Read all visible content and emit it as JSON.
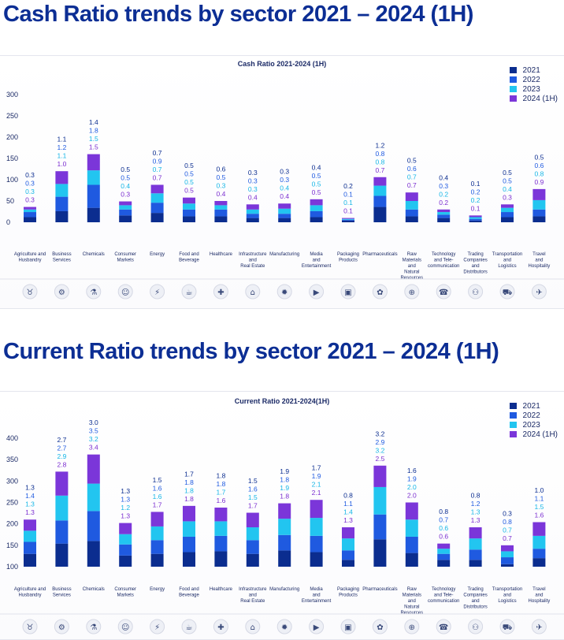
{
  "headings": {
    "cash": "Cash Ratio trends by sector 2021 – 2024 (1H)",
    "current": "Current Ratio trends by sector 2021 – 2024 (1H)"
  },
  "colors": {
    "2021": "#0b2d8f",
    "2022": "#1f5ae0",
    "2023": "#22c5f0",
    "2024 (1H)": "#7b36d9",
    "label2023": "#16b6e6",
    "label2024": "#7b2fd0",
    "axis": "#1b2a66"
  },
  "legend": [
    "2021",
    "2022",
    "2023",
    "2024 (1H)"
  ],
  "sectors": [
    {
      "label": [
        "Agriculture and",
        "Husbandry"
      ],
      "icon": "cow-icon",
      "glyph": "♉"
    },
    {
      "label": [
        "Business",
        "Services"
      ],
      "icon": "gears-icon",
      "glyph": "⚙"
    },
    {
      "label": [
        "Chemicals"
      ],
      "icon": "flask-icon",
      "glyph": "⚗"
    },
    {
      "label": [
        "Consumer",
        "Markets"
      ],
      "icon": "person-icon",
      "glyph": "☺"
    },
    {
      "label": [
        "Energy"
      ],
      "icon": "energy-icon",
      "glyph": "⚡"
    },
    {
      "label": [
        "Food and",
        "Beverage"
      ],
      "icon": "cup-icon",
      "glyph": "☕"
    },
    {
      "label": [
        "Healthcare"
      ],
      "icon": "health-icon",
      "glyph": "✚"
    },
    {
      "label": [
        "Infrastructure",
        "and",
        "Real Estate"
      ],
      "icon": "building-icon",
      "glyph": "⌂"
    },
    {
      "label": [
        "Manufacturing"
      ],
      "icon": "cog-icon",
      "glyph": "✹"
    },
    {
      "label": [
        "Media",
        "and",
        "Entertainment"
      ],
      "icon": "media-icon",
      "glyph": "▶"
    },
    {
      "label": [
        "Packaging",
        "Products"
      ],
      "icon": "box-icon",
      "glyph": "▣"
    },
    {
      "label": [
        "Pharmaceuticals"
      ],
      "icon": "pills-icon",
      "glyph": "✿"
    },
    {
      "label": [
        "Raw",
        "Materials",
        "and",
        "Natural",
        "Resources"
      ],
      "icon": "globe-icon",
      "glyph": "⊕"
    },
    {
      "label": [
        "Technology",
        "and Tele-",
        "communication"
      ],
      "icon": "chip-icon",
      "glyph": "☎"
    },
    {
      "label": [
        "Trading",
        "Companies",
        "and",
        "Distributors"
      ],
      "icon": "people-icon",
      "glyph": "⚇"
    },
    {
      "label": [
        "Transportation",
        "and",
        "Logistics"
      ],
      "icon": "truck-icon",
      "glyph": "⛟"
    },
    {
      "label": [
        "Travel",
        "and",
        "Hospitality"
      ],
      "icon": "plane-icon",
      "glyph": "✈"
    }
  ],
  "chart_data": [
    {
      "type": "bar",
      "stacked": true,
      "title": "Cash Ratio 2021-2024 (1H)",
      "ylim": [
        0,
        300
      ],
      "yticks": [
        0,
        50,
        100,
        150,
        200,
        250,
        300
      ],
      "series_names": [
        "2021",
        "2022",
        "2023",
        "2024 (1H)"
      ],
      "labels": [
        [
          "0.3",
          "0.3",
          "0.3",
          "0.3"
        ],
        [
          "1.1",
          "1.2",
          "1.1",
          "1.0"
        ],
        [
          "1.4",
          "1.8",
          "1.5",
          "1.5"
        ],
        [
          "0.5",
          "0.5",
          "0.4",
          "0.3"
        ],
        [
          "0.7",
          "0.9",
          "0.7",
          "0.7"
        ],
        [
          "0.5",
          "0.5",
          "0.5",
          "0.5"
        ],
        [
          "0.6",
          "0.5",
          "0.3",
          "0.4"
        ],
        [
          "0.3",
          "0.3",
          "0.3",
          "0.4"
        ],
        [
          "0.3",
          "0.3",
          "0.4",
          "0.4"
        ],
        [
          "0.4",
          "0.5",
          "0.5",
          "0.5"
        ],
        [
          "0.2",
          "0.1",
          "0.1",
          "0.1"
        ],
        [
          "1.2",
          "0.8",
          "0.8",
          "0.7"
        ],
        [
          "0.5",
          "0.6",
          "0.7",
          "0.7"
        ],
        [
          "0.4",
          "0.3",
          "0.2",
          "0.2"
        ],
        [
          "0.1",
          "0.2",
          "0.2",
          "0.1"
        ],
        [
          "0.5",
          "0.5",
          "0.4",
          "0.3"
        ],
        [
          "0.5",
          "0.6",
          "0.8",
          "0.9"
        ]
      ],
      "values": [
        [
          12,
          12,
          6,
          6
        ],
        [
          26,
          34,
          30,
          30
        ],
        [
          34,
          54,
          34,
          38
        ],
        [
          16,
          14,
          10,
          9
        ],
        [
          22,
          24,
          22,
          20
        ],
        [
          14,
          16,
          14,
          14
        ],
        [
          14,
          16,
          10,
          10
        ],
        [
          10,
          10,
          10,
          12
        ],
        [
          10,
          10,
          12,
          12
        ],
        [
          12,
          14,
          14,
          14
        ],
        [
          4,
          2,
          2,
          2
        ],
        [
          36,
          26,
          24,
          20
        ],
        [
          14,
          16,
          20,
          20
        ],
        [
          10,
          8,
          6,
          6
        ],
        [
          4,
          4,
          4,
          4
        ],
        [
          12,
          12,
          10,
          8
        ],
        [
          14,
          16,
          22,
          26
        ]
      ]
    },
    {
      "type": "bar",
      "stacked": true,
      "title": "Current Ratio 2021-2024(1H)",
      "ylim": [
        100,
        400
      ],
      "yticks": [
        100,
        150,
        200,
        250,
        300,
        350,
        400
      ],
      "series_names": [
        "2021",
        "2022",
        "2023",
        "2024 (1H)"
      ],
      "labels": [
        [
          "1.3",
          "1.4",
          "1.3",
          "1.3"
        ],
        [
          "2.7",
          "2.7",
          "2.9",
          "2.8"
        ],
        [
          "3.0",
          "3.5",
          "3.2",
          "3.4"
        ],
        [
          "1.3",
          "1.3",
          "1.2",
          "1.3"
        ],
        [
          "1.5",
          "1.6",
          "1.6",
          "1.7"
        ],
        [
          "1.7",
          "1.8",
          "1.8",
          "1.8"
        ],
        [
          "1.8",
          "1.8",
          "1.7",
          "1.6"
        ],
        [
          "1.5",
          "1.6",
          "1.5",
          "1.7"
        ],
        [
          "1.9",
          "1.8",
          "1.9",
          "1.8"
        ],
        [
          "1.7",
          "1.9",
          "2.1",
          "2.1"
        ],
        [
          "0.8",
          "1.1",
          "1.4",
          "1.3"
        ],
        [
          "3.2",
          "2.9",
          "3.2",
          "2.5"
        ],
        [
          "1.6",
          "1.9",
          "2.0",
          "2.0"
        ],
        [
          "0.8",
          "0.7",
          "0.6",
          "0.6"
        ],
        [
          "0.8",
          "1.2",
          "1.3",
          "1.3"
        ],
        [
          "0.3",
          "0.8",
          "0.7",
          "0.7"
        ],
        [
          "1.0",
          "1.1",
          "1.5",
          "1.6"
        ]
      ],
      "values": [
        [
          30,
          28,
          26,
          26
        ],
        [
          54,
          54,
          58,
          56
        ],
        [
          60,
          70,
          64,
          68
        ],
        [
          26,
          26,
          24,
          26
        ],
        [
          30,
          32,
          32,
          34
        ],
        [
          34,
          36,
          36,
          36
        ],
        [
          36,
          36,
          34,
          32
        ],
        [
          30,
          32,
          30,
          34
        ],
        [
          38,
          36,
          38,
          36
        ],
        [
          34,
          38,
          42,
          42
        ],
        [
          16,
          22,
          28,
          26
        ],
        [
          64,
          58,
          64,
          50
        ],
        [
          32,
          38,
          40,
          40
        ],
        [
          16,
          14,
          12,
          12
        ],
        [
          16,
          24,
          26,
          26
        ],
        [
          6,
          16,
          14,
          14
        ],
        [
          20,
          22,
          30,
          32
        ]
      ]
    }
  ]
}
